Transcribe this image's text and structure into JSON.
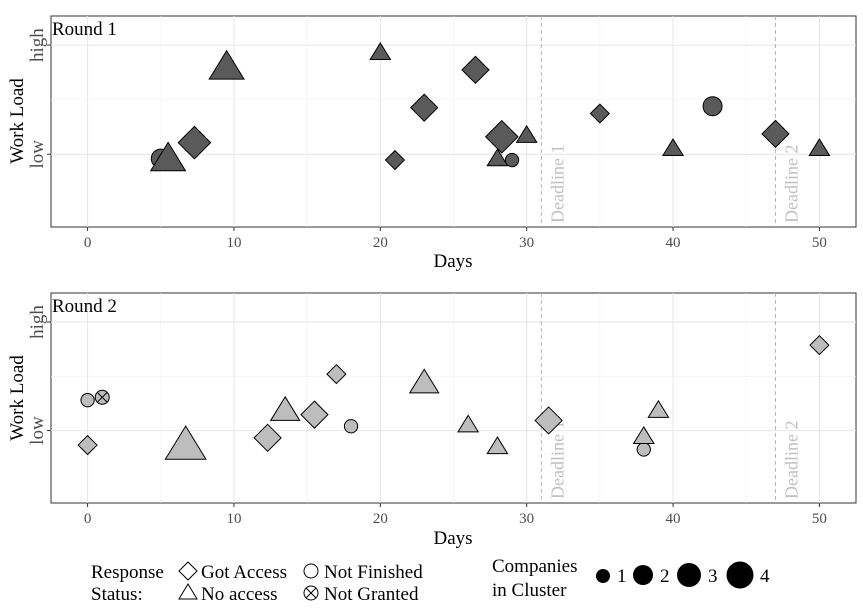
{
  "chart_data": [
    {
      "type": "scatter",
      "panel_label": "Round 1",
      "xlabel": "Days",
      "ylabel": "Work Load",
      "xlim": [
        -2.5,
        52.5
      ],
      "ylim": [
        0.5,
        1.95
      ],
      "x_ticks": [
        0,
        10,
        20,
        30,
        40,
        50
      ],
      "y_ticks": [
        {
          "value": 1,
          "label": "low"
        },
        {
          "value": 1.75,
          "label": "high"
        }
      ],
      "grid": true,
      "deadlines": [
        {
          "x": 31,
          "label": "Deadline 1"
        },
        {
          "x": 47,
          "label": "Deadline 2"
        }
      ],
      "fill_color": "#5a5a5a",
      "points": [
        {
          "x": 5,
          "y": 0.97,
          "status": "Not Finished",
          "size": 2
        },
        {
          "x": 5.5,
          "y": 0.97,
          "status": "No access",
          "size": 3
        },
        {
          "x": 7.3,
          "y": 1.08,
          "status": "Got Access",
          "size": 3
        },
        {
          "x": 9.5,
          "y": 1.6,
          "status": "No access",
          "size": 3
        },
        {
          "x": 20,
          "y": 1.7,
          "status": "No access",
          "size": 1
        },
        {
          "x": 21,
          "y": 0.96,
          "status": "Got Access",
          "size": 1
        },
        {
          "x": 23,
          "y": 1.32,
          "status": "Got Access",
          "size": 2
        },
        {
          "x": 26.5,
          "y": 1.58,
          "status": "Got Access",
          "size": 2
        },
        {
          "x": 28,
          "y": 0.97,
          "status": "No access",
          "size": 1
        },
        {
          "x": 28.3,
          "y": 1.12,
          "status": "Got Access",
          "size": 3
        },
        {
          "x": 29,
          "y": 0.96,
          "status": "Not Finished",
          "size": 1
        },
        {
          "x": 30,
          "y": 1.13,
          "status": "No access",
          "size": 1
        },
        {
          "x": 35,
          "y": 1.28,
          "status": "Got Access",
          "size": 1
        },
        {
          "x": 40,
          "y": 1.04,
          "status": "No access",
          "size": 1
        },
        {
          "x": 42.7,
          "y": 1.33,
          "status": "Not Finished",
          "size": 2
        },
        {
          "x": 47,
          "y": 1.14,
          "status": "Got Access",
          "size": 2
        },
        {
          "x": 50,
          "y": 1.04,
          "status": "No access",
          "size": 1
        }
      ]
    },
    {
      "type": "scatter",
      "panel_label": "Round 2",
      "xlabel": "Days",
      "ylabel": "Work Load",
      "xlim": [
        -2.5,
        52.5
      ],
      "ylim": [
        0.5,
        1.95
      ],
      "x_ticks": [
        0,
        10,
        20,
        30,
        40,
        50
      ],
      "y_ticks": [
        {
          "value": 1,
          "label": "low"
        },
        {
          "value": 1.75,
          "label": "high"
        }
      ],
      "grid": true,
      "deadlines": [
        {
          "x": 31,
          "label": "Deadline 1"
        },
        {
          "x": 47,
          "label": "Deadline 2"
        }
      ],
      "fill_color": "#bdbdbd",
      "points": [
        {
          "x": 0,
          "y": 1.21,
          "status": "Not Finished",
          "size": 1
        },
        {
          "x": 1,
          "y": 1.23,
          "status": "Not Granted",
          "size": 1
        },
        {
          "x": 0,
          "y": 0.9,
          "status": "Got Access",
          "size": 1
        },
        {
          "x": 6.7,
          "y": 0.9,
          "status": "No access",
          "size": 4
        },
        {
          "x": 12.3,
          "y": 0.95,
          "status": "Got Access",
          "size": 2
        },
        {
          "x": 13.5,
          "y": 1.14,
          "status": "No access",
          "size": 2
        },
        {
          "x": 15.5,
          "y": 1.11,
          "status": "Got Access",
          "size": 2
        },
        {
          "x": 17,
          "y": 1.39,
          "status": "Got Access",
          "size": 1
        },
        {
          "x": 18,
          "y": 1.03,
          "status": "Not Finished",
          "size": 1
        },
        {
          "x": 23,
          "y": 1.33,
          "status": "No access",
          "size": 2
        },
        {
          "x": 26,
          "y": 1.04,
          "status": "No access",
          "size": 1
        },
        {
          "x": 28,
          "y": 0.89,
          "status": "No access",
          "size": 1
        },
        {
          "x": 31.5,
          "y": 1.07,
          "status": "Got Access",
          "size": 2
        },
        {
          "x": 38,
          "y": 0.87,
          "status": "Not Finished",
          "size": 1
        },
        {
          "x": 38,
          "y": 0.96,
          "status": "No access",
          "size": 1
        },
        {
          "x": 39,
          "y": 1.14,
          "status": "No access",
          "size": 1
        },
        {
          "x": 50,
          "y": 1.59,
          "status": "Got Access",
          "size": 1
        }
      ]
    }
  ],
  "legend": {
    "response_title_line1": "Response",
    "response_title_line2": "Status:",
    "shapes": [
      {
        "shape": "diamond",
        "label": "Got Access"
      },
      {
        "shape": "circle",
        "label": "Not Finished"
      },
      {
        "shape": "triangle",
        "label": "No access"
      },
      {
        "shape": "crossed-circle",
        "label": "Not Granted"
      }
    ],
    "size_title_line1": "Companies",
    "size_title_line2": "in Cluster",
    "sizes": [
      {
        "size": 1,
        "label": "1"
      },
      {
        "size": 2,
        "label": "2"
      },
      {
        "size": 3,
        "label": "3"
      },
      {
        "size": 4,
        "label": "4"
      }
    ]
  }
}
